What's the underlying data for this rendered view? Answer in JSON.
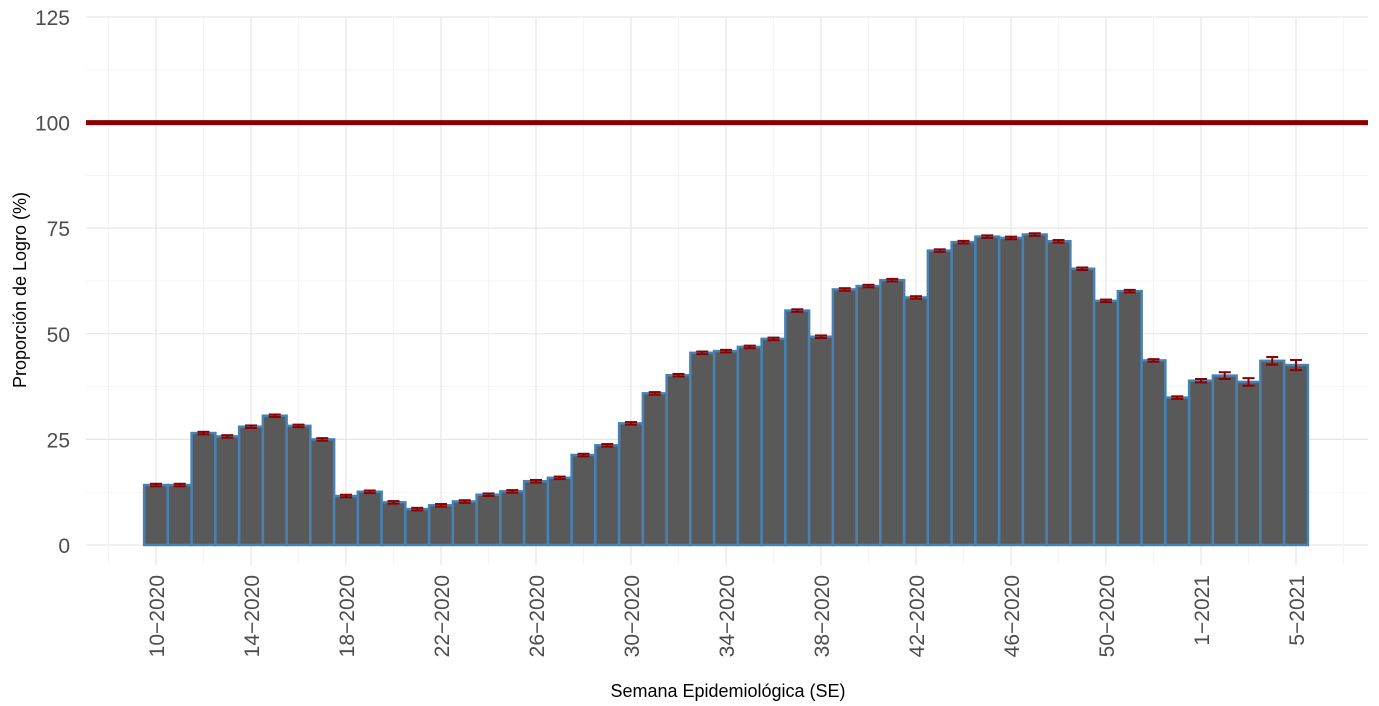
{
  "chart_data": {
    "type": "bar",
    "title": "",
    "xlabel": "Semana Epidemiológica (SE)",
    "ylabel": "Proporción de Logro (%)",
    "ylim": [
      0,
      125
    ],
    "yticks": [
      0,
      25,
      50,
      75,
      100,
      125
    ],
    "grid": true,
    "bar_fill": "#595959",
    "bar_outline": "#4682b4",
    "error_bar_color": "#8b0000",
    "reference_line": {
      "value": 100,
      "color": "#8b0000"
    },
    "x_tick_labels": [
      "10−2020",
      "14−2020",
      "18−2020",
      "22−2020",
      "26−2020",
      "30−2020",
      "34−2020",
      "38−2020",
      "42−2020",
      "46−2020",
      "50−2020",
      "1−2021",
      "5−2021"
    ],
    "x_tick_positions": [
      0,
      4,
      8,
      12,
      16,
      20,
      24,
      28,
      32,
      36,
      40,
      44,
      48
    ],
    "categories": [
      "10-2020",
      "11-2020",
      "12-2020",
      "13-2020",
      "14-2020",
      "15-2020",
      "16-2020",
      "17-2020",
      "18-2020",
      "19-2020",
      "20-2020",
      "21-2020",
      "22-2020",
      "23-2020",
      "24-2020",
      "25-2020",
      "26-2020",
      "27-2020",
      "28-2020",
      "29-2020",
      "30-2020",
      "31-2020",
      "32-2020",
      "33-2020",
      "34-2020",
      "35-2020",
      "36-2020",
      "37-2020",
      "38-2020",
      "39-2020",
      "40-2020",
      "41-2020",
      "42-2020",
      "43-2020",
      "44-2020",
      "45-2020",
      "46-2020",
      "47-2020",
      "48-2020",
      "49-2020",
      "50-2020",
      "51-2020",
      "52-2020",
      "53-2020",
      "1-2021",
      "2-2021",
      "3-2021",
      "4-2021",
      "5-2021"
    ],
    "values": [
      14.2,
      14.2,
      26.5,
      25.7,
      28.0,
      30.6,
      28.2,
      25.0,
      11.6,
      12.6,
      10.1,
      8.5,
      9.4,
      10.3,
      11.9,
      12.7,
      15.1,
      15.9,
      21.3,
      23.6,
      28.8,
      35.9,
      40.2,
      45.5,
      45.9,
      46.9,
      48.8,
      55.5,
      49.3,
      60.5,
      61.3,
      62.7,
      58.6,
      69.7,
      71.7,
      73.0,
      72.7,
      73.5,
      71.9,
      65.4,
      57.8,
      60.1,
      43.7,
      34.9,
      38.9,
      40.1,
      38.6,
      43.6,
      42.6
    ],
    "errors": [
      0.3,
      0.3,
      0.3,
      0.3,
      0.3,
      0.3,
      0.3,
      0.3,
      0.3,
      0.3,
      0.3,
      0.3,
      0.3,
      0.3,
      0.3,
      0.3,
      0.3,
      0.3,
      0.3,
      0.3,
      0.3,
      0.3,
      0.3,
      0.3,
      0.3,
      0.3,
      0.3,
      0.3,
      0.3,
      0.3,
      0.3,
      0.3,
      0.3,
      0.3,
      0.3,
      0.3,
      0.3,
      0.3,
      0.3,
      0.3,
      0.3,
      0.3,
      0.3,
      0.3,
      0.4,
      0.8,
      0.9,
      0.9,
      1.2
    ]
  }
}
